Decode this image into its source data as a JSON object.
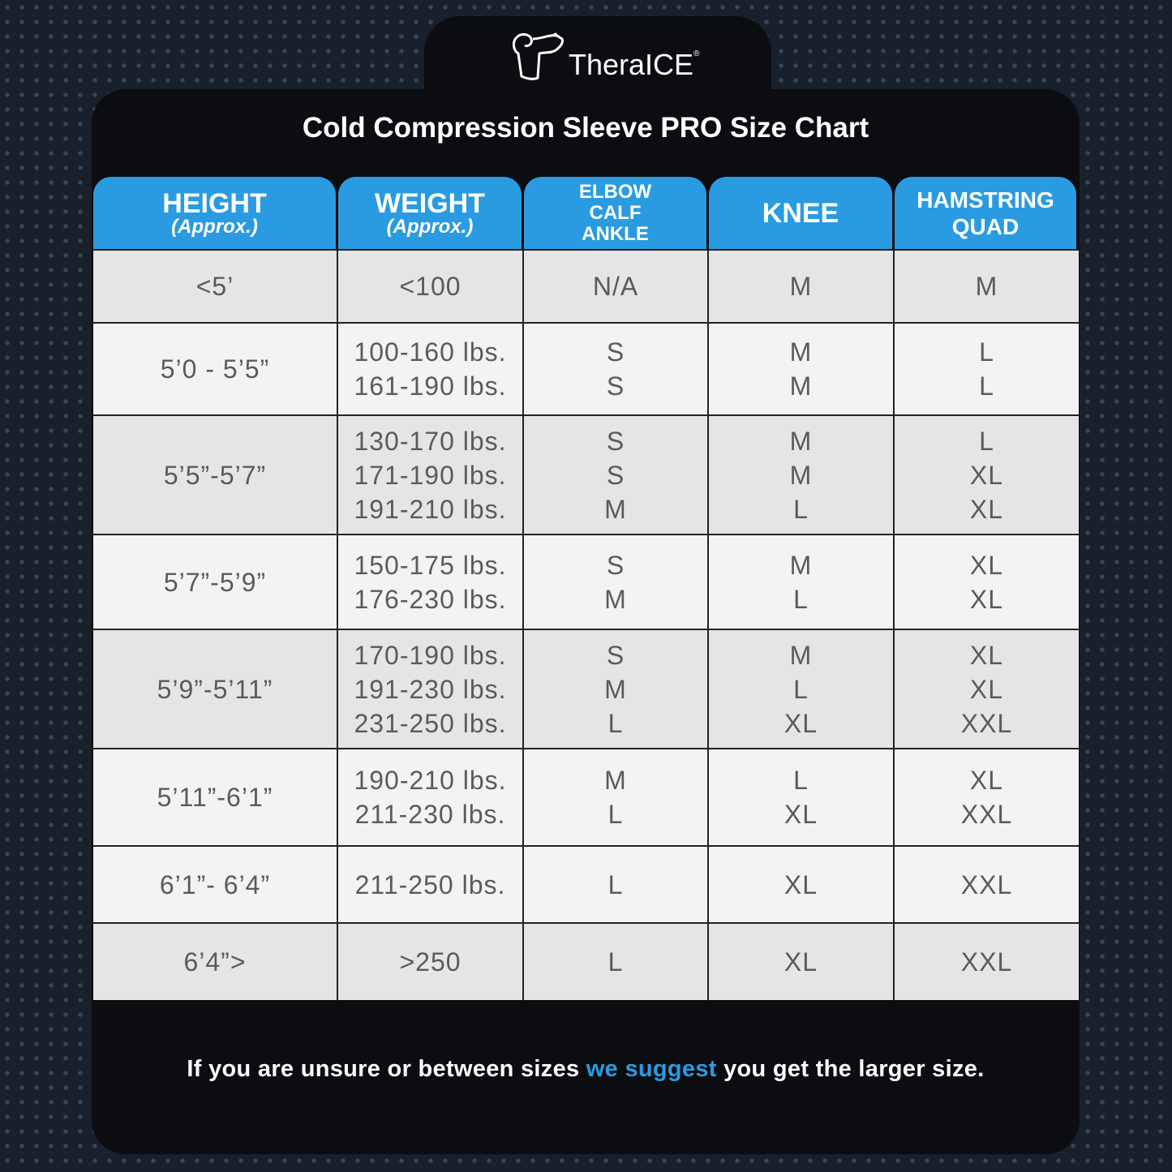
{
  "brand": {
    "name": "TheraICE",
    "registered": "®"
  },
  "title": "Cold Compression Sleeve PRO Size Chart",
  "headers": [
    {
      "main": "HEIGHT",
      "sub": "(Approx.)"
    },
    {
      "main": "WEIGHT",
      "sub": "(Approx.)"
    },
    {
      "lines": [
        "ELBOW",
        "CALF",
        "ANKLE"
      ]
    },
    {
      "main": "KNEE"
    },
    {
      "lines": [
        "HAMSTRING",
        "QUAD"
      ]
    }
  ],
  "rows": [
    {
      "shade": "gray",
      "cells": [
        [
          "<5’"
        ],
        [
          "<100"
        ],
        [
          "N/A"
        ],
        [
          "M"
        ],
        [
          "M"
        ]
      ]
    },
    {
      "shade": "light",
      "cells": [
        [
          "5’0 - 5’5”"
        ],
        [
          "100-160 lbs.",
          "161-190 lbs."
        ],
        [
          "S",
          "S"
        ],
        [
          "M",
          "M"
        ],
        [
          "L",
          "L"
        ]
      ]
    },
    {
      "shade": "gray",
      "cells": [
        [
          "5’5”-5’7”"
        ],
        [
          "130-170 lbs.",
          "171-190 lbs.",
          "191-210 lbs."
        ],
        [
          "S",
          "S",
          "M"
        ],
        [
          "M",
          "M",
          "L"
        ],
        [
          "L",
          "XL",
          "XL"
        ]
      ]
    },
    {
      "shade": "light",
      "cells": [
        [
          "5’7”-5’9”"
        ],
        [
          "150-175 lbs.",
          "176-230 lbs."
        ],
        [
          "S",
          "M"
        ],
        [
          "M",
          "L"
        ],
        [
          "XL",
          "XL"
        ]
      ]
    },
    {
      "shade": "gray",
      "cells": [
        [
          "5’9”-5’11”"
        ],
        [
          "170-190 lbs.",
          "191-230 lbs.",
          "231-250 lbs."
        ],
        [
          "S",
          "M",
          "L"
        ],
        [
          "M",
          "L",
          "XL"
        ],
        [
          "XL",
          "XL",
          "XXL"
        ]
      ]
    },
    {
      "shade": "light",
      "cells": [
        [
          "5’11”-6’1”"
        ],
        [
          "190-210 lbs.",
          "211-230 lbs."
        ],
        [
          "M",
          "L"
        ],
        [
          "L",
          "XL"
        ],
        [
          "XL",
          "XXL"
        ]
      ]
    },
    {
      "shade": "light",
      "cells": [
        [
          "6’1”- 6’4”"
        ],
        [
          "211-250 lbs."
        ],
        [
          "L"
        ],
        [
          "XL"
        ],
        [
          "XXL"
        ]
      ]
    },
    {
      "shade": "gray",
      "cells": [
        [
          "6’4”>"
        ],
        [
          ">250"
        ],
        [
          "L"
        ],
        [
          "XL"
        ],
        [
          "XXL"
        ]
      ]
    }
  ],
  "footer": {
    "before": "If you are unsure or between sizes ",
    "highlight": "we suggest",
    "after": " you get the larger size."
  },
  "colors": {
    "accent": "#2a9be0",
    "card": "#0b0d11",
    "background": "#17202b"
  }
}
